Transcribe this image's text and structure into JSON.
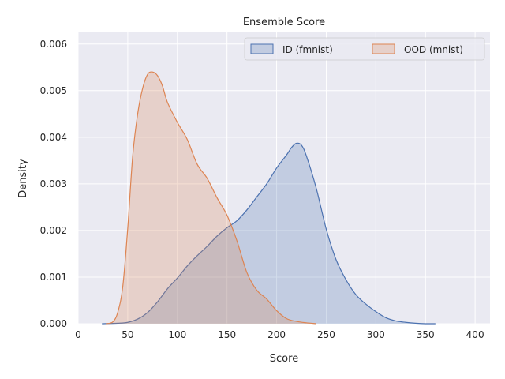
{
  "chart_data": {
    "type": "area",
    "title": "Ensemble Score",
    "xlabel": "Score",
    "ylabel": "Density",
    "xlim": [
      0,
      415
    ],
    "ylim": [
      0,
      0.00625
    ],
    "xticks": [
      "0",
      "50",
      "100",
      "150",
      "200",
      "250",
      "300",
      "350",
      "400"
    ],
    "yticks": [
      "0.000",
      "0.001",
      "0.002",
      "0.003",
      "0.004",
      "0.005",
      "0.006"
    ],
    "grid": true,
    "legend": "top-right",
    "series": [
      {
        "name": "ID (fmnist)",
        "color": "#4c72b0",
        "x": [
          24,
          40,
          50,
          60,
          70,
          80,
          90,
          100,
          110,
          120,
          130,
          140,
          150,
          160,
          170,
          180,
          190,
          200,
          210,
          215,
          220,
          225,
          230,
          240,
          250,
          260,
          270,
          280,
          290,
          300,
          310,
          320,
          330,
          340,
          350,
          360
        ],
        "y": [
          0.0,
          1e-05,
          3e-05,
          0.0001,
          0.00024,
          0.00047,
          0.00075,
          0.00098,
          0.00124,
          0.00146,
          0.00166,
          0.00188,
          0.00206,
          0.00221,
          0.00244,
          0.00272,
          0.003,
          0.00334,
          0.00362,
          0.00378,
          0.00387,
          0.00383,
          0.0036,
          0.0029,
          0.00203,
          0.00137,
          0.00094,
          0.00062,
          0.00042,
          0.00026,
          0.00013,
          6e-05,
          3e-05,
          1e-05,
          0.0,
          0.0
        ]
      },
      {
        "name": "OOD (mnist)",
        "color": "#dd8452",
        "x": [
          28,
          35,
          40,
          45,
          50,
          55,
          60,
          65,
          70,
          75,
          80,
          85,
          90,
          100,
          110,
          120,
          130,
          140,
          150,
          160,
          170,
          180,
          190,
          200,
          210,
          220,
          230,
          240
        ],
        "y": [
          0.0,
          4e-05,
          0.00025,
          0.0008,
          0.00205,
          0.0036,
          0.0045,
          0.00505,
          0.00535,
          0.0054,
          0.00532,
          0.0051,
          0.00475,
          0.00432,
          0.00395,
          0.00342,
          0.00312,
          0.0027,
          0.00233,
          0.00178,
          0.0011,
          0.00072,
          0.00053,
          0.00028,
          0.00011,
          5e-05,
          2e-05,
          0.0
        ]
      }
    ]
  }
}
